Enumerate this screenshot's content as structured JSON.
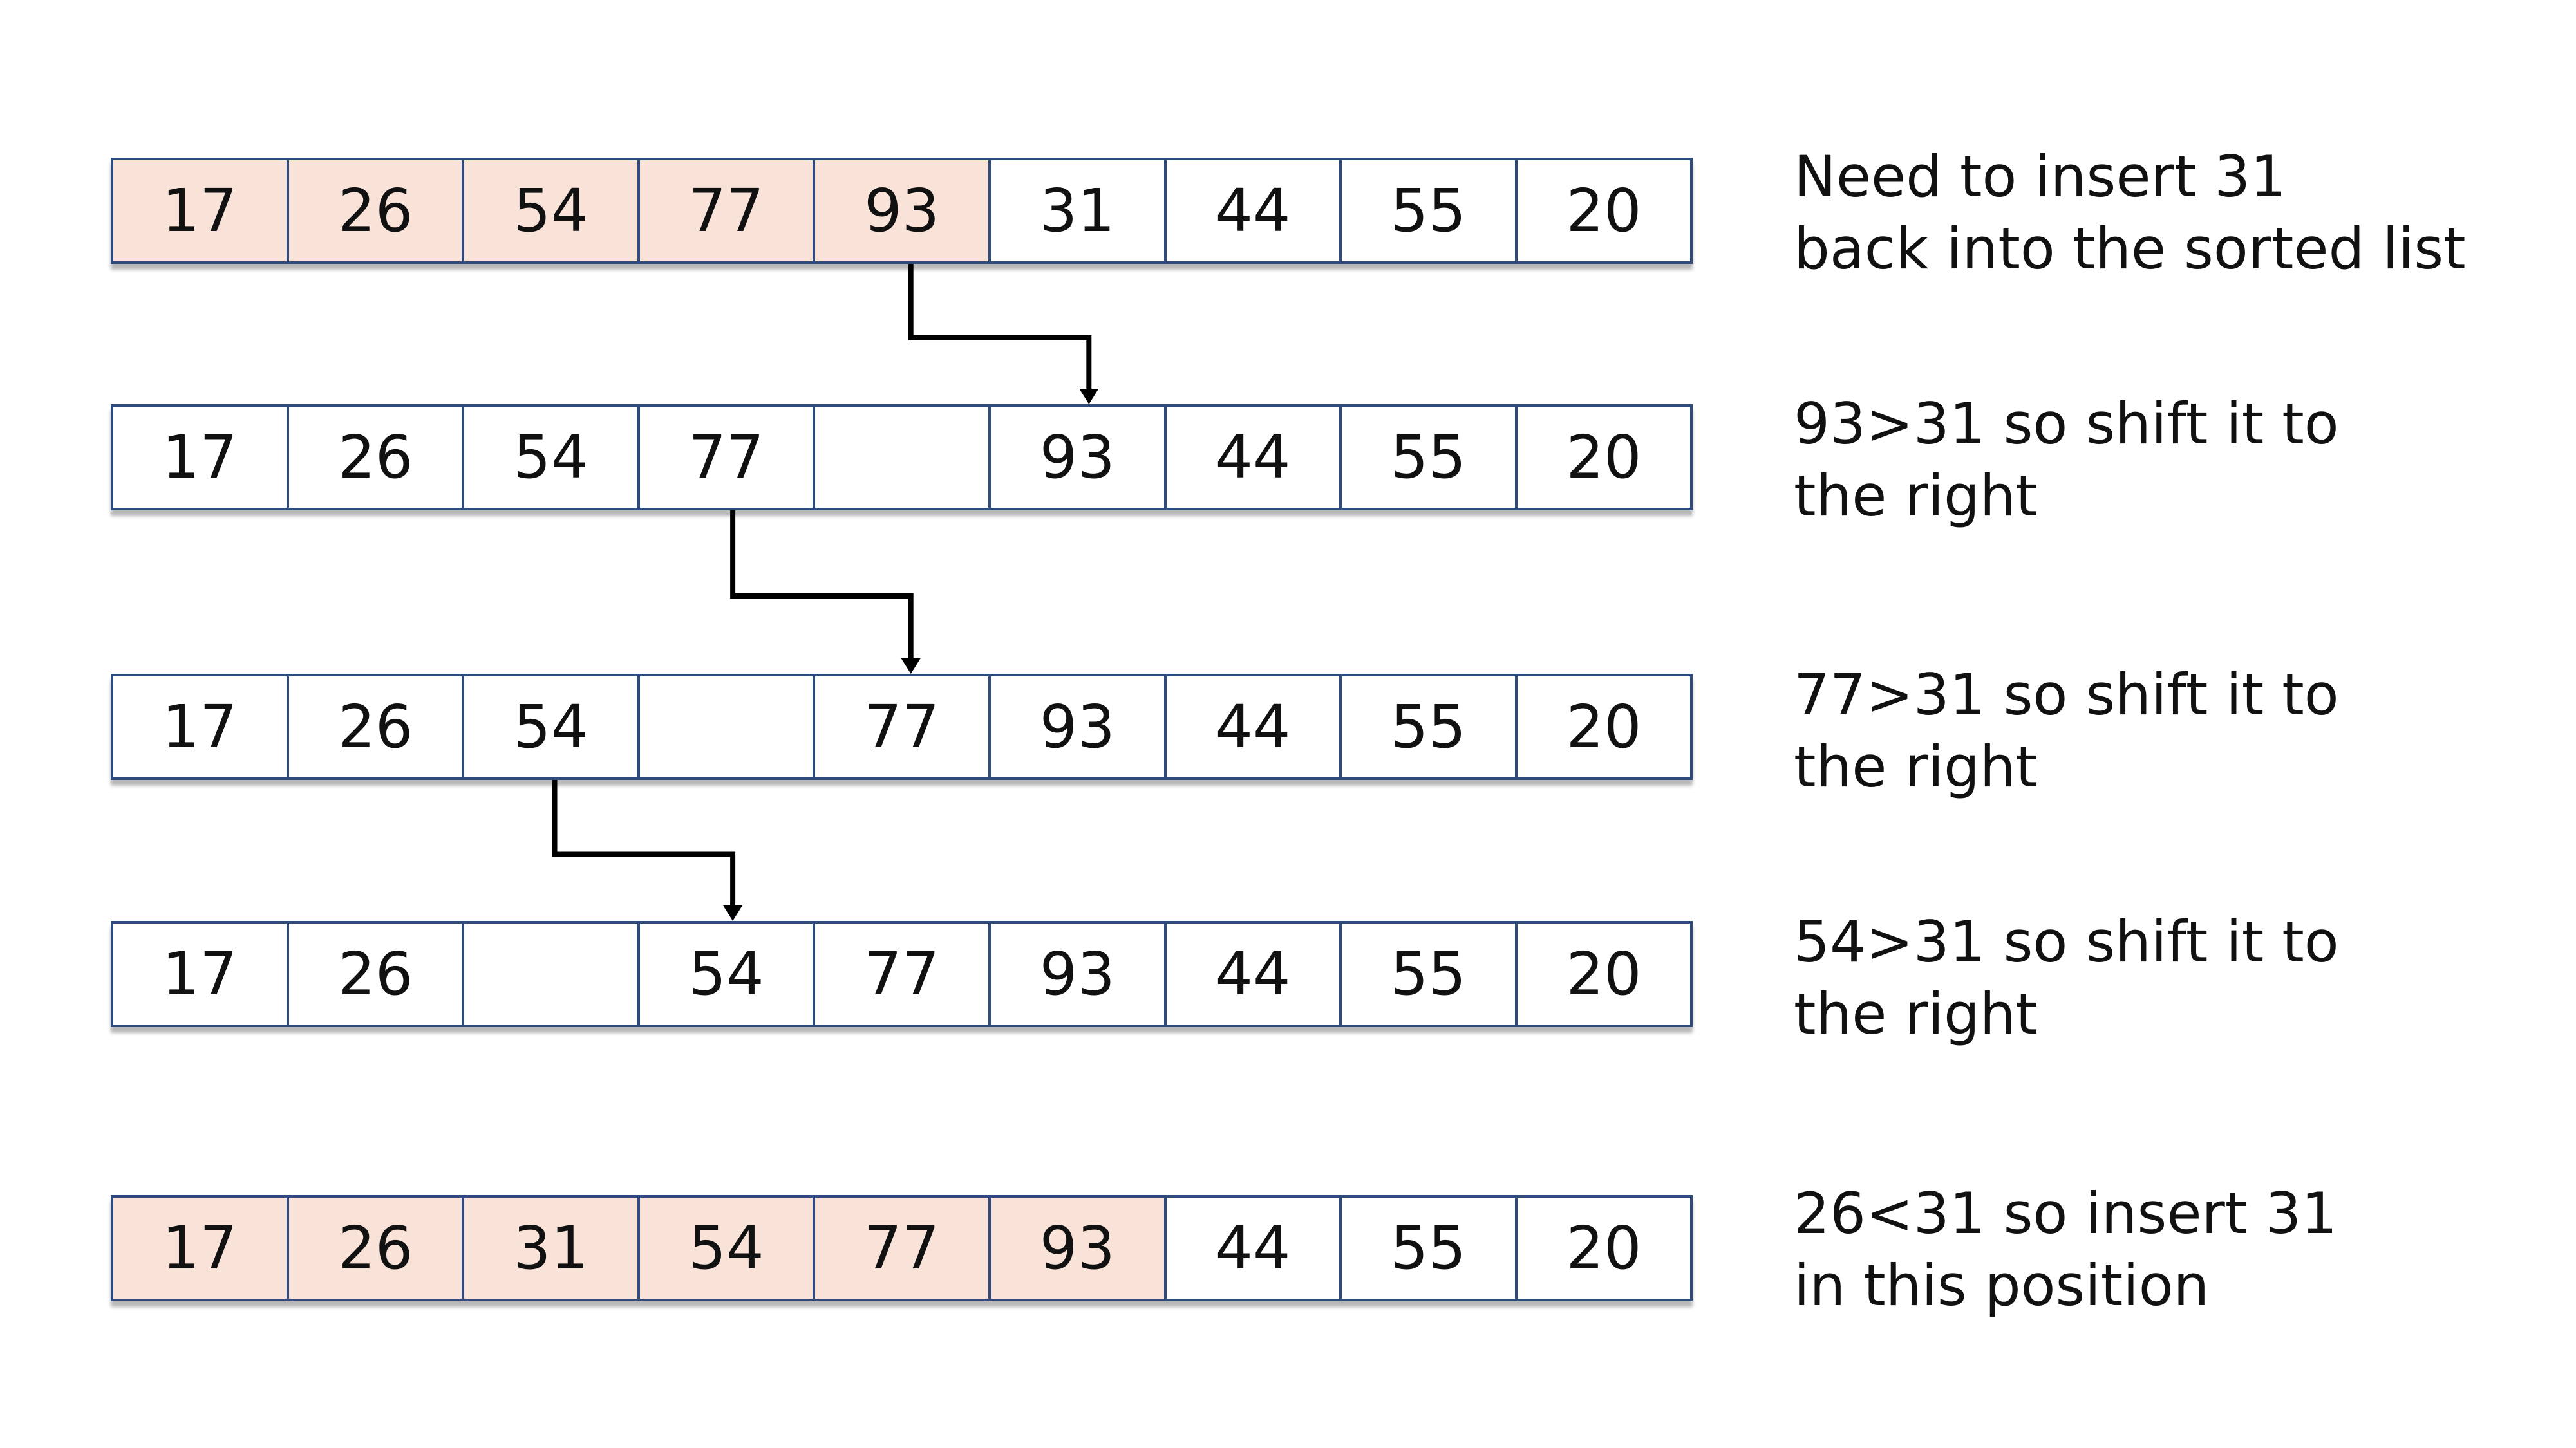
{
  "colors": {
    "sorted_fill": "#f9e3d9",
    "cell_border": "#2f4a7c",
    "arrow": "#000000"
  },
  "rows": [
    {
      "cells": [
        {
          "value": "17",
          "sorted": true
        },
        {
          "value": "26",
          "sorted": true
        },
        {
          "value": "54",
          "sorted": true
        },
        {
          "value": "77",
          "sorted": true
        },
        {
          "value": "93",
          "sorted": true
        },
        {
          "value": "31",
          "sorted": false
        },
        {
          "value": "44",
          "sorted": false
        },
        {
          "value": "55",
          "sorted": false
        },
        {
          "value": "20",
          "sorted": false
        }
      ],
      "caption": [
        "Need to insert 31",
        "back into the sorted list"
      ]
    },
    {
      "cells": [
        {
          "value": "17",
          "sorted": false
        },
        {
          "value": "26",
          "sorted": false
        },
        {
          "value": "54",
          "sorted": false
        },
        {
          "value": "77",
          "sorted": false
        },
        {
          "value": "",
          "sorted": false
        },
        {
          "value": "93",
          "sorted": false
        },
        {
          "value": "44",
          "sorted": false
        },
        {
          "value": "55",
          "sorted": false
        },
        {
          "value": "20",
          "sorted": false
        }
      ],
      "caption": [
        "93>31 so shift it to",
        "the right"
      ]
    },
    {
      "cells": [
        {
          "value": "17",
          "sorted": false
        },
        {
          "value": "26",
          "sorted": false
        },
        {
          "value": "54",
          "sorted": false
        },
        {
          "value": "",
          "sorted": false
        },
        {
          "value": "77",
          "sorted": false
        },
        {
          "value": "93",
          "sorted": false
        },
        {
          "value": "44",
          "sorted": false
        },
        {
          "value": "55",
          "sorted": false
        },
        {
          "value": "20",
          "sorted": false
        }
      ],
      "caption": [
        "77>31 so shift it to",
        "the right"
      ]
    },
    {
      "cells": [
        {
          "value": "17",
          "sorted": false
        },
        {
          "value": "26",
          "sorted": false
        },
        {
          "value": "",
          "sorted": false
        },
        {
          "value": "54",
          "sorted": false
        },
        {
          "value": "77",
          "sorted": false
        },
        {
          "value": "93",
          "sorted": false
        },
        {
          "value": "44",
          "sorted": false
        },
        {
          "value": "55",
          "sorted": false
        },
        {
          "value": "20",
          "sorted": false
        }
      ],
      "caption": [
        "54>31 so shift it to",
        "the right"
      ]
    },
    {
      "cells": [
        {
          "value": "17",
          "sorted": true
        },
        {
          "value": "26",
          "sorted": true
        },
        {
          "value": "31",
          "sorted": true
        },
        {
          "value": "54",
          "sorted": true
        },
        {
          "value": "77",
          "sorted": true
        },
        {
          "value": "93",
          "sorted": true
        },
        {
          "value": "44",
          "sorted": false
        },
        {
          "value": "55",
          "sorted": false
        },
        {
          "value": "20",
          "sorted": false
        }
      ],
      "caption": [
        "26<31 so insert 31",
        "in this position"
      ]
    }
  ],
  "shifts": [
    {
      "from_row": 0,
      "from_col": 4,
      "to_row": 1,
      "to_col": 5
    },
    {
      "from_row": 1,
      "from_col": 3,
      "to_row": 2,
      "to_col": 4
    },
    {
      "from_row": 2,
      "from_col": 2,
      "to_row": 3,
      "to_col": 3
    }
  ]
}
